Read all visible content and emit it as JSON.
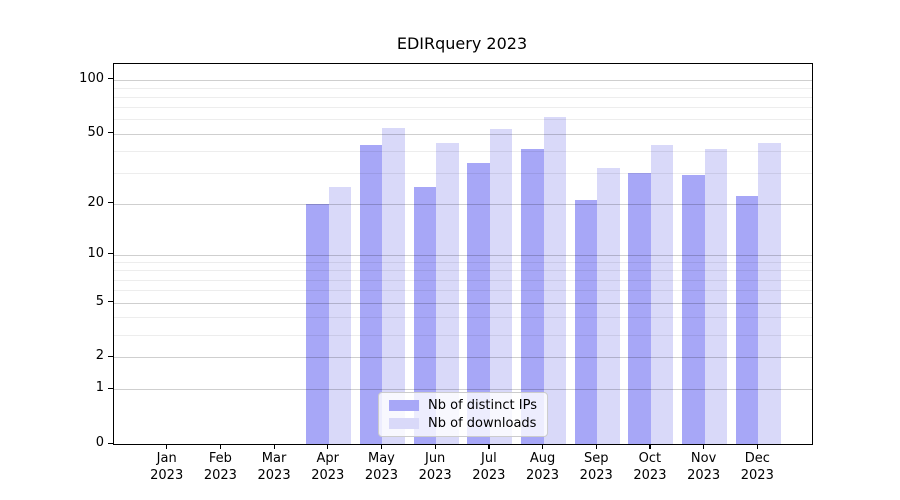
{
  "chart_data": {
    "type": "bar",
    "title": "EDIRquery 2023",
    "categories": [
      "Jan 2023",
      "Feb 2023",
      "Mar 2023",
      "Apr 2023",
      "May 2023",
      "Jun 2023",
      "Jul 2023",
      "Aug 2023",
      "Sep 2023",
      "Oct 2023",
      "Nov 2023",
      "Dec 2023"
    ],
    "series": [
      {
        "name": "Nb of distinct IPs",
        "color": "#a7a7f7",
        "values": [
          0,
          0,
          0,
          20,
          43,
          25,
          34,
          41,
          21,
          30,
          29,
          22
        ]
      },
      {
        "name": "Nb of downloads",
        "color": "#d9d9f9",
        "values": [
          0,
          0,
          0,
          25,
          54,
          44,
          53,
          62,
          32,
          43,
          41,
          44
        ]
      }
    ],
    "xlabel": "",
    "ylabel": "",
    "y_scale": "log1p",
    "y_ticks": [
      0,
      1,
      2,
      5,
      10,
      20,
      50,
      100
    ],
    "y_minor_gridlines": [
      3,
      4,
      6,
      7,
      8,
      9,
      30,
      40,
      60,
      70,
      80,
      90
    ],
    "ylim": [
      0,
      122
    ],
    "grid": "horizontal",
    "grid_above_bars": true,
    "legend": {
      "position": "lower-center",
      "entries": [
        "Nb of distinct IPs",
        "Nb of downloads"
      ]
    },
    "colors": {
      "bar_distinct_ips": "#a7a7f7",
      "bar_downloads": "#d9d9f9",
      "grid_major": "#cfcfcf",
      "grid_minor": "#ededed",
      "axis": "#000000",
      "background": "#ffffff"
    }
  }
}
